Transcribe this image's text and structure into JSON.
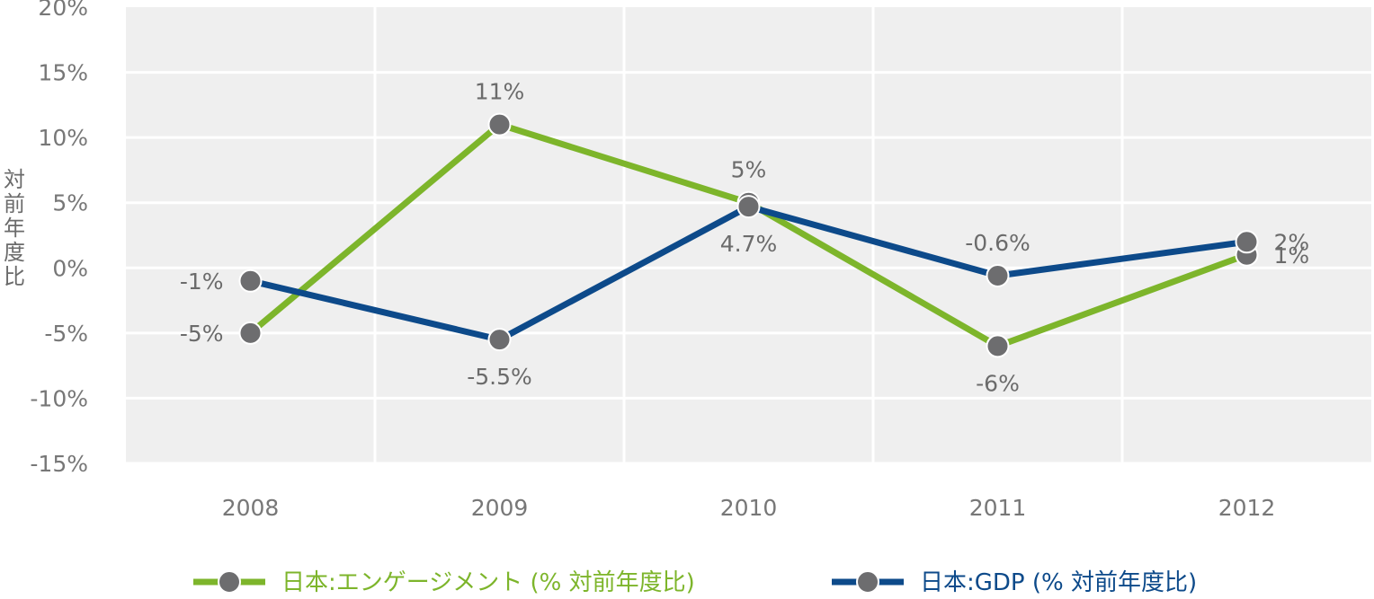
{
  "chart_data": {
    "type": "line",
    "title": "",
    "xlabel": "",
    "ylabel": "対前年度比",
    "categories": [
      "2008",
      "2009",
      "2010",
      "2011",
      "2012"
    ],
    "y_ticks": [
      "20%",
      "15%",
      "10%",
      "5%",
      "0%",
      "-5%",
      "-10%",
      "-15%"
    ],
    "ylim": [
      -15,
      20
    ],
    "grid": true,
    "legend_position": "bottom",
    "series": [
      {
        "name": "日本:エンゲージメント (% 対前年度比)",
        "color": "#7db52b",
        "values": [
          -5,
          11,
          5,
          -6,
          1
        ],
        "labels": [
          "-5%",
          "11%",
          "5%",
          "-6%",
          "1%"
        ],
        "label_pos": [
          "left",
          "above",
          "above",
          "below",
          "right"
        ]
      },
      {
        "name": "日本:GDP (% 対前年度比)",
        "color": "#0d4a8a",
        "values": [
          -1,
          -5.5,
          4.7,
          -0.6,
          2
        ],
        "labels": [
          "-1%",
          "-5.5%",
          "4.7%",
          "-0.6%",
          "2%"
        ],
        "label_pos": [
          "left",
          "below",
          "below",
          "above",
          "right"
        ]
      }
    ],
    "marker_color": "#6d6d6f",
    "plot_bg": "#efefef",
    "grid_color": "#ffffff"
  }
}
